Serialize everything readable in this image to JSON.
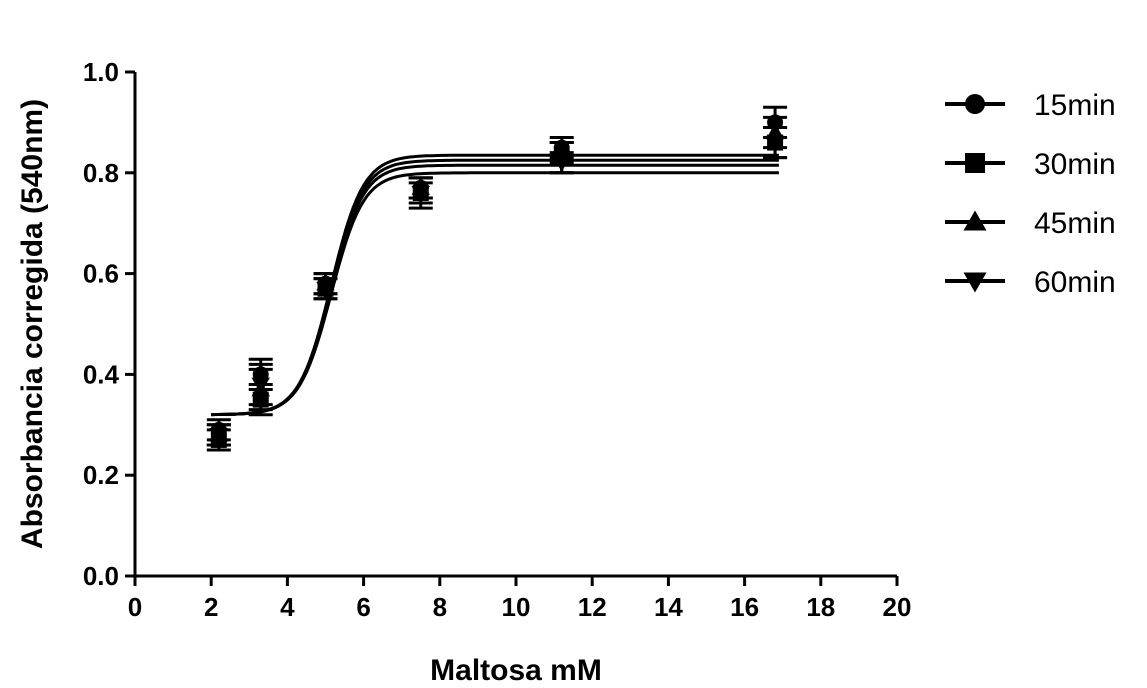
{
  "chart_data": {
    "type": "scatter",
    "xlabel": "Maltosa mM",
    "ylabel": "Absorbancia corregida (540nm)",
    "xlim": [
      0,
      20
    ],
    "ylim": [
      0,
      1.0
    ],
    "x_ticks": [
      0,
      2,
      4,
      6,
      8,
      10,
      12,
      14,
      16,
      18,
      20
    ],
    "y_ticks": [
      "0.0",
      "0.2",
      "0.4",
      "0.6",
      "0.8",
      "1.0"
    ],
    "grid": false,
    "legend_position": "right",
    "fit": "sigmoidal",
    "series": [
      {
        "name": "15min",
        "marker": "circle",
        "x": [
          2.2,
          3.3,
          5.0,
          7.5,
          11.2,
          16.8
        ],
        "y": [
          0.29,
          0.4,
          0.58,
          0.77,
          0.85,
          0.9
        ],
        "error": [
          0.02,
          0.03,
          0.02,
          0.02,
          0.02,
          0.03
        ],
        "fit_plateau": 0.835
      },
      {
        "name": "30min",
        "marker": "square",
        "x": [
          2.2,
          3.3,
          5.0,
          7.5,
          11.2,
          16.8
        ],
        "y": [
          0.27,
          0.35,
          0.57,
          0.76,
          0.83,
          0.86
        ],
        "error": [
          0.02,
          0.03,
          0.02,
          0.03,
          0.03,
          0.03
        ],
        "fit_plateau": 0.825
      },
      {
        "name": "45min",
        "marker": "triangle-up",
        "x": [
          2.2,
          3.3,
          5.0,
          7.5,
          11.2,
          16.8
        ],
        "y": [
          0.28,
          0.37,
          0.58,
          0.77,
          0.84,
          0.88
        ],
        "error": [
          0.02,
          0.04,
          0.02,
          0.02,
          0.02,
          0.03
        ],
        "fit_plateau": 0.815
      },
      {
        "name": "60min",
        "marker": "triangle-down",
        "x": [
          2.2,
          3.3,
          5.0,
          7.5,
          11.2,
          16.8
        ],
        "y": [
          0.28,
          0.38,
          0.57,
          0.76,
          0.82,
          0.86
        ],
        "error": [
          0.02,
          0.04,
          0.02,
          0.02,
          0.02,
          0.03
        ],
        "fit_plateau": 0.8
      }
    ]
  }
}
